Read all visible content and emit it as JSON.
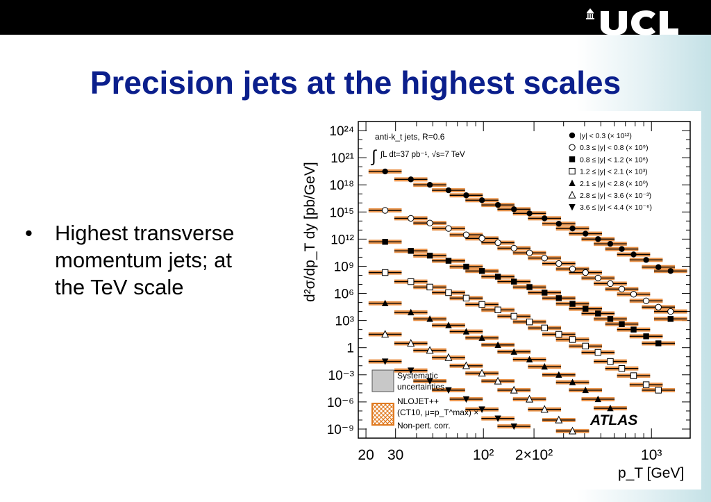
{
  "slide": {
    "title": "Precision jets at the highest scales",
    "logo_text": "UCL",
    "bullets": [
      {
        "lines": [
          "Highest transverse",
          "momentum jets; at",
          "the TeV scale"
        ]
      }
    ],
    "colors": {
      "title": "#0b1f8c",
      "top_bar": "#000000",
      "right_gradient": "#c4e1e6",
      "band": "#e07a20"
    }
  },
  "chart_data": {
    "type": "scatter",
    "x_scale": "log",
    "y_scale": "log",
    "xlim": [
      18,
      1700
    ],
    "ylim": [
      "1e-10",
      "1e25"
    ],
    "xlabel": "p_T [GeV]",
    "ylabel": "d²σ/dp_T dy [pb/GeV]",
    "x_ticklabels": [
      "20",
      "30",
      "10²",
      "2×10²",
      "10³"
    ],
    "y_ticklabels": [
      "10²⁴",
      "10²¹",
      "10¹⁸",
      "10¹⁵",
      "10¹²",
      "10⁹",
      "10⁶",
      "10³",
      "1",
      "10⁻³",
      "10⁻⁶",
      "10⁻⁹"
    ],
    "annotations": [
      "anti-k_t jets, R=0.6",
      "∫L dt=37 pb⁻¹, √s=7 TeV",
      "ATLAS"
    ],
    "legend_placement": "top-right",
    "legend_bottom": [
      "Systematic",
      "uncertainties",
      "NLOJET++",
      "(CT10, μ=p_T^max) ×",
      "Non-pert. corr."
    ],
    "series": [
      {
        "name": "|y| < 0.3 (× 10¹²)",
        "marker": "circle-filled",
        "x": [
          26,
          37,
          48,
          62,
          79,
          98,
          122,
          152,
          188,
          231,
          281,
          339,
          405,
          481,
          569,
          666,
          783,
          930,
          1100,
          1300
        ],
        "y": [
          "3e19",
          "4e18",
          "1e18",
          "2.5e17",
          "7e16",
          "2e16",
          "6e15",
          "2e15",
          "7e14",
          "2e14",
          "5e13",
          "1.5e13",
          "4e12",
          "1e12",
          "3e11",
          "8e10",
          "2e10",
          "5e9",
          "8e8",
          "3e8"
        ]
      },
      {
        "name": "0.3 ≤ |y| < 0.8 (× 10⁹)",
        "marker": "circle-open",
        "x": [
          26,
          37,
          48,
          62,
          79,
          98,
          122,
          152,
          188,
          231,
          281,
          339,
          405,
          481,
          569,
          666,
          783,
          930,
          1100,
          1300
        ],
        "y": [
          "1.5e15",
          "2e14",
          "6e13",
          "1.5e13",
          "3e12",
          "1.2e12",
          "4e11",
          "1e11",
          "3e10",
          "8e9",
          "2e9",
          "5e8",
          "2e8",
          "5e7",
          "1.2e7",
          "3e6",
          "8e5",
          "1.5e5",
          "3e4",
          "1e4"
        ]
      },
      {
        "name": "0.8 ≤ |y| < 1.2 (× 10⁶)",
        "marker": "square-filled",
        "x": [
          26,
          37,
          48,
          62,
          79,
          98,
          122,
          152,
          188,
          231,
          281,
          339,
          405,
          481,
          569,
          666,
          783,
          930,
          1100,
          1300
        ],
        "y": [
          "5e11",
          "5e10",
          "1.5e10",
          "4e9",
          "9e8",
          "3e8",
          "7e7",
          "2e7",
          "5e6",
          "1.2e6",
          "3e5",
          "7e4",
          "2e4",
          "6e3",
          "1.5e3",
          "400",
          "100",
          "18",
          "3",
          "1.5e3"
        ]
      },
      {
        "name": "1.2 ≤ |y| < 2.1 (× 10³)",
        "marker": "square-open",
        "x": [
          26,
          37,
          48,
          62,
          79,
          98,
          122,
          152,
          188,
          231,
          281,
          339,
          405,
          481,
          569,
          666,
          783,
          930,
          1100
        ],
        "y": [
          "2e8",
          "2e7",
          "5e6",
          "1.2e6",
          "3e5",
          "6e4",
          "1.5e4",
          "3e3",
          "700",
          "150",
          "30",
          "8",
          "1.5",
          "0.3",
          "0.03",
          "0.005",
          "8e-4",
          "8e-5",
          "2e-5"
        ]
      },
      {
        "name": "2.1 ≤ |y| < 2.8 (× 10⁰)",
        "marker": "triangle-up-filled",
        "x": [
          26,
          37,
          48,
          62,
          79,
          98,
          122,
          152,
          188,
          231,
          281,
          339,
          405,
          481,
          569
        ],
        "y": [
          "8e4",
          "8e3",
          "1.5e3",
          "300",
          "60",
          "12",
          "2",
          "0.35",
          "0.05",
          "0.008",
          "1e-3",
          "1.5e-4",
          "2e-5",
          "2e-6",
          "2e-7"
        ]
      },
      {
        "name": "2.8 ≤ |y| < 3.6 (× 10⁻³)",
        "marker": "triangle-up-open",
        "x": [
          26,
          37,
          48,
          62,
          79,
          98,
          122,
          152,
          188,
          231,
          281,
          339
        ],
        "y": [
          "30",
          "3",
          "0.5",
          "0.08",
          "0.01",
          "1.5e-3",
          "2e-4",
          "2e-5",
          "2e-6",
          "1.5e-7",
          "1e-8",
          "6e-10"
        ]
      },
      {
        "name": "3.6 ≤ |y| < 4.4 (× 10⁻⁶)",
        "marker": "triangle-down-filled",
        "x": [
          26,
          37,
          48,
          62,
          79,
          98,
          122,
          152
        ],
        "y": [
          "0.03",
          "3e-3",
          "2e-4",
          "2e-5",
          "2e-6",
          "1.5e-7",
          "1.5e-8",
          "2e-9"
        ]
      }
    ]
  }
}
